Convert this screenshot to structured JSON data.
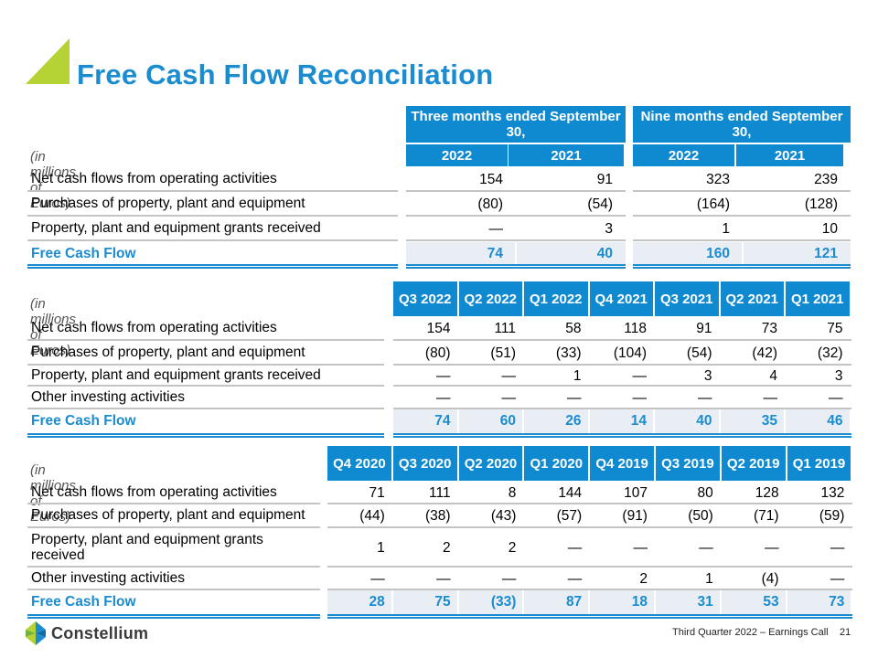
{
  "title": "Free Cash Flow Reconciliation",
  "unit_label": "(in millions of Euros)",
  "table1": {
    "group_headers": [
      "Three months ended September 30,",
      "Nine months ended September 30,"
    ],
    "columns": [
      "2022",
      "2021",
      "2022",
      "2021"
    ],
    "rows": [
      {
        "label": "Net cash flows from operating activities",
        "values": [
          "154",
          "91",
          "323",
          "239"
        ]
      },
      {
        "label": "Purchases of property, plant and equipment",
        "values": [
          "(80)",
          "(54)",
          "(164)",
          "(128)"
        ]
      },
      {
        "label": "Property, plant and equipment grants received",
        "values": [
          "—",
          "3",
          "1",
          "10"
        ]
      },
      {
        "label": "Free Cash Flow",
        "values": [
          "74",
          "40",
          "160",
          "121"
        ]
      }
    ]
  },
  "table2": {
    "columns": [
      "Q3 2022",
      "Q2 2022",
      "Q1 2022",
      "Q4 2021",
      "Q3 2021",
      "Q2 2021",
      "Q1 2021"
    ],
    "rows": [
      {
        "label": "Net cash flows from operating activities",
        "values": [
          "154",
          "111",
          "58",
          "118",
          "91",
          "73",
          "75"
        ]
      },
      {
        "label": "Purchases of property, plant and equipment",
        "values": [
          "(80)",
          "(51)",
          "(33)",
          "(104)",
          "(54)",
          "(42)",
          "(32)"
        ]
      },
      {
        "label": "Property, plant and equipment grants received",
        "values": [
          "—",
          "—",
          "1",
          "—",
          "3",
          "4",
          "3"
        ]
      },
      {
        "label": "Other investing activities",
        "values": [
          "—",
          "—",
          "—",
          "—",
          "—",
          "—",
          "—"
        ]
      },
      {
        "label": "Free Cash Flow",
        "values": [
          "74",
          "60",
          "26",
          "14",
          "40",
          "35",
          "46"
        ]
      }
    ]
  },
  "table3": {
    "columns": [
      "Q4 2020",
      "Q3 2020",
      "Q2 2020",
      "Q1 2020",
      "Q4 2019",
      "Q3 2019",
      "Q2 2019",
      "Q1 2019"
    ],
    "rows": [
      {
        "label": "Net cash flows from operating activities",
        "values": [
          "71",
          "111",
          "8",
          "144",
          "107",
          "80",
          "128",
          "132"
        ]
      },
      {
        "label": "Purchases of property, plant and equipment",
        "values": [
          "(44)",
          "(38)",
          "(43)",
          "(57)",
          "(91)",
          "(50)",
          "(71)",
          "(59)"
        ]
      },
      {
        "label": "Property, plant and equipment grants received",
        "values": [
          "1",
          "2",
          "2",
          "—",
          "—",
          "—",
          "—",
          "—"
        ]
      },
      {
        "label": "Other investing activities",
        "values": [
          "—",
          "—",
          "—",
          "—",
          "2",
          "1",
          "(4)",
          "—"
        ]
      },
      {
        "label": "Free Cash Flow",
        "values": [
          "28",
          "75",
          "(33)",
          "87",
          "18",
          "31",
          "53",
          "73"
        ]
      }
    ]
  },
  "footer": {
    "call": "Third Quarter 2022 – Earnings Call",
    "page": "21"
  },
  "logo": {
    "text": "Constellium"
  },
  "colors": {
    "accent": "#1a8ccf",
    "header_bg": "#0f8ad1",
    "corner": "#b5d334",
    "fcf_bg": "#e9eef5"
  }
}
